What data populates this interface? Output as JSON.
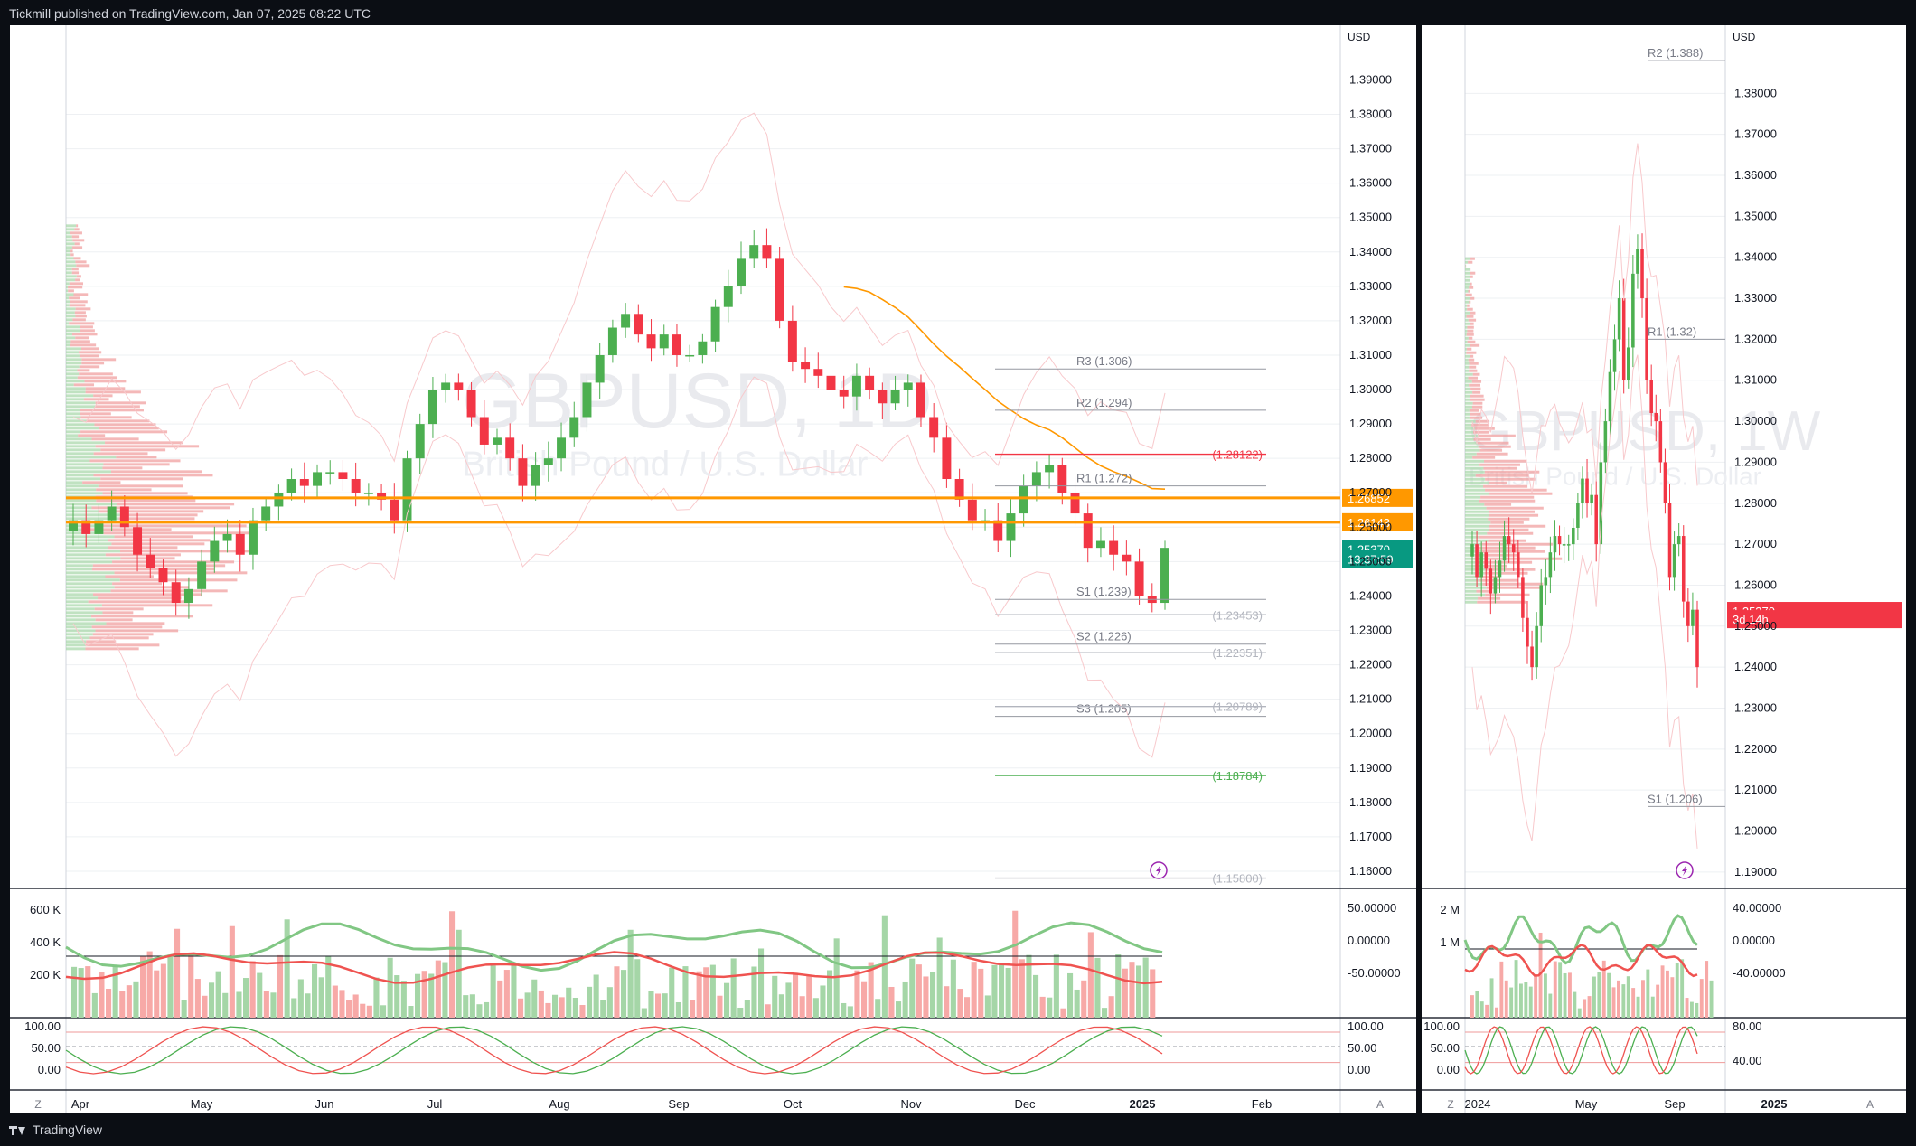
{
  "header": {
    "published": "Tickmill published on TradingView.com, Jan 07, 2025 08:22 UTC"
  },
  "footer": {
    "brand": "TradingView"
  },
  "colors": {
    "up": "#26a69a",
    "down": "#ef5350",
    "green": "#4caf50",
    "red": "#f23645",
    "orange": "#ff9800",
    "grid": "#eef0f3",
    "axis": "#787b86"
  },
  "chart_data": [
    {
      "type": "line",
      "symbol": "GBPUSD",
      "timeframe": "1D",
      "watermark": "GBPUSD, 1D",
      "watermark_sub": "British Pound / U.S. Dollar",
      "currency": "USD",
      "y_ticks": [
        "1.39000",
        "1.38000",
        "1.37000",
        "1.36000",
        "1.35000",
        "1.34000",
        "1.33000",
        "1.32000",
        "1.31000",
        "1.30000",
        "1.29000",
        "1.28000",
        "1.27000",
        "1.26000",
        "1.25000",
        "1.24000",
        "1.23000",
        "1.22000",
        "1.21000",
        "1.20000",
        "1.19000",
        "1.18000",
        "1.17000",
        "1.16000"
      ],
      "ylim": [
        1.155,
        1.398
      ],
      "x_ticks": [
        "Apr",
        "May",
        "Jun",
        "Jul",
        "Aug",
        "Sep",
        "Oct",
        "Nov",
        "Dec",
        "2025",
        "Feb"
      ],
      "price_labels": [
        {
          "text": "1.26852",
          "value": 1.26852,
          "color": "#ff9800"
        },
        {
          "text": "1.26143",
          "value": 1.26143,
          "color": "#ff9800"
        },
        {
          "text": "1.25370",
          "value": 1.2537,
          "color": "#089981"
        },
        {
          "text": "13:37:59",
          "value": 1.2508,
          "color": "#089981"
        }
      ],
      "pivots": [
        {
          "label": "R3 (1.306)",
          "value": 1.306
        },
        {
          "label": "R2 (1.294)",
          "value": 1.294
        },
        {
          "label": "R1 (1.272)",
          "value": 1.272
        },
        {
          "label": "S1 (1.239)",
          "value": 1.239
        },
        {
          "label": "S2 (1.226)",
          "value": 1.226
        },
        {
          "label": "S3 (1.205)",
          "value": 1.205
        }
      ],
      "levels": [
        {
          "label": "(1.28122)",
          "value": 1.28122,
          "color": "#f23645"
        },
        {
          "label": "(1.23453)",
          "value": 1.23453,
          "color": "#b2b5be"
        },
        {
          "label": "(1.22351)",
          "value": 1.22351,
          "color": "#b2b5be"
        },
        {
          "label": "(1.20789)",
          "value": 1.20789,
          "color": "#b2b5be"
        },
        {
          "label": "(1.18784)",
          "value": 1.18784,
          "color": "#4caf50"
        },
        {
          "label": "(1.15800)",
          "value": 1.158,
          "color": "#b2b5be"
        }
      ],
      "close_series": [
        1.262,
        1.258,
        1.262,
        1.266,
        1.26,
        1.252,
        1.248,
        1.244,
        1.238,
        1.242,
        1.25,
        1.256,
        1.258,
        1.252,
        1.262,
        1.266,
        1.27,
        1.274,
        1.272,
        1.276,
        1.276,
        1.274,
        1.27,
        1.27,
        1.268,
        1.262,
        1.28,
        1.29,
        1.3,
        1.302,
        1.3,
        1.292,
        1.284,
        1.286,
        1.28,
        1.272,
        1.278,
        1.28,
        1.286,
        1.292,
        1.302,
        1.31,
        1.318,
        1.322,
        1.316,
        1.312,
        1.316,
        1.31,
        1.31,
        1.314,
        1.324,
        1.33,
        1.338,
        1.342,
        1.338,
        1.32,
        1.308,
        1.306,
        1.304,
        1.3,
        1.298,
        1.304,
        1.3,
        1.296,
        1.3,
        1.302,
        1.292,
        1.286,
        1.274,
        1.268,
        1.262,
        1.262,
        1.256,
        1.264,
        1.272,
        1.276,
        1.278,
        1.27,
        1.264,
        1.254,
        1.256,
        1.252,
        1.25,
        1.24,
        1.238,
        1.254
      ],
      "vol_ticks": [
        "600 K",
        "400 K",
        "200 K"
      ],
      "osc_ticks": [
        "50.00000",
        "0.00000",
        "-50.00000"
      ],
      "stoch_ticks": [
        "100.00",
        "50.00",
        "0.00"
      ],
      "rsi_ticks": [
        "100.00",
        "50.00",
        "0.00"
      ]
    },
    {
      "type": "line",
      "symbol": "GBPUSD",
      "timeframe": "1W",
      "watermark": "GBPUSD, 1W",
      "watermark_sub": "British Pound / U.S. Dollar",
      "currency": "USD",
      "y_ticks": [
        "1.38000",
        "1.37000",
        "1.36000",
        "1.35000",
        "1.34000",
        "1.33000",
        "1.32000",
        "1.31000",
        "1.30000",
        "1.29000",
        "1.28000",
        "1.27000",
        "1.26000",
        "1.25000",
        "1.24000",
        "1.23000",
        "1.22000",
        "1.21000",
        "1.20000",
        "1.19000"
      ],
      "ylim": [
        1.186,
        1.39
      ],
      "x_ticks": [
        "2024",
        "May",
        "Sep",
        "2025"
      ],
      "price_labels": [
        {
          "text": "1.25370",
          "value": 1.2537,
          "color": "#f23645"
        },
        {
          "text": "3d 14h",
          "value": 1.2517,
          "color": "#f23645"
        }
      ],
      "pivots": [
        {
          "label": "R2 (1.388)",
          "value": 1.388
        },
        {
          "label": "R1 (1.32)",
          "value": 1.32
        },
        {
          "label": "S1 (1.206)",
          "value": 1.206
        }
      ],
      "close_series": [
        1.27,
        1.262,
        1.268,
        1.264,
        1.258,
        1.262,
        1.266,
        1.272,
        1.27,
        1.268,
        1.262,
        1.252,
        1.245,
        1.24,
        1.25,
        1.26,
        1.262,
        1.268,
        1.272,
        1.27,
        1.27,
        1.27,
        1.274,
        1.28,
        1.286,
        1.28,
        1.282,
        1.27,
        1.29,
        1.3,
        1.312,
        1.32,
        1.33,
        1.31,
        1.318,
        1.336,
        1.342,
        1.33,
        1.31,
        1.302,
        1.3,
        1.29,
        1.28,
        1.262,
        1.27,
        1.272,
        1.256,
        1.25,
        1.254,
        1.24
      ],
      "vol_ticks": [
        "2 M",
        "1 M"
      ],
      "osc_ticks": [
        "40.00000",
        "0.00000",
        "-40.00000"
      ],
      "stoch_ticks": [
        "100.00",
        "50.00",
        "0.00"
      ],
      "rsi_ticks": [
        "80.00",
        "40.00"
      ]
    }
  ]
}
